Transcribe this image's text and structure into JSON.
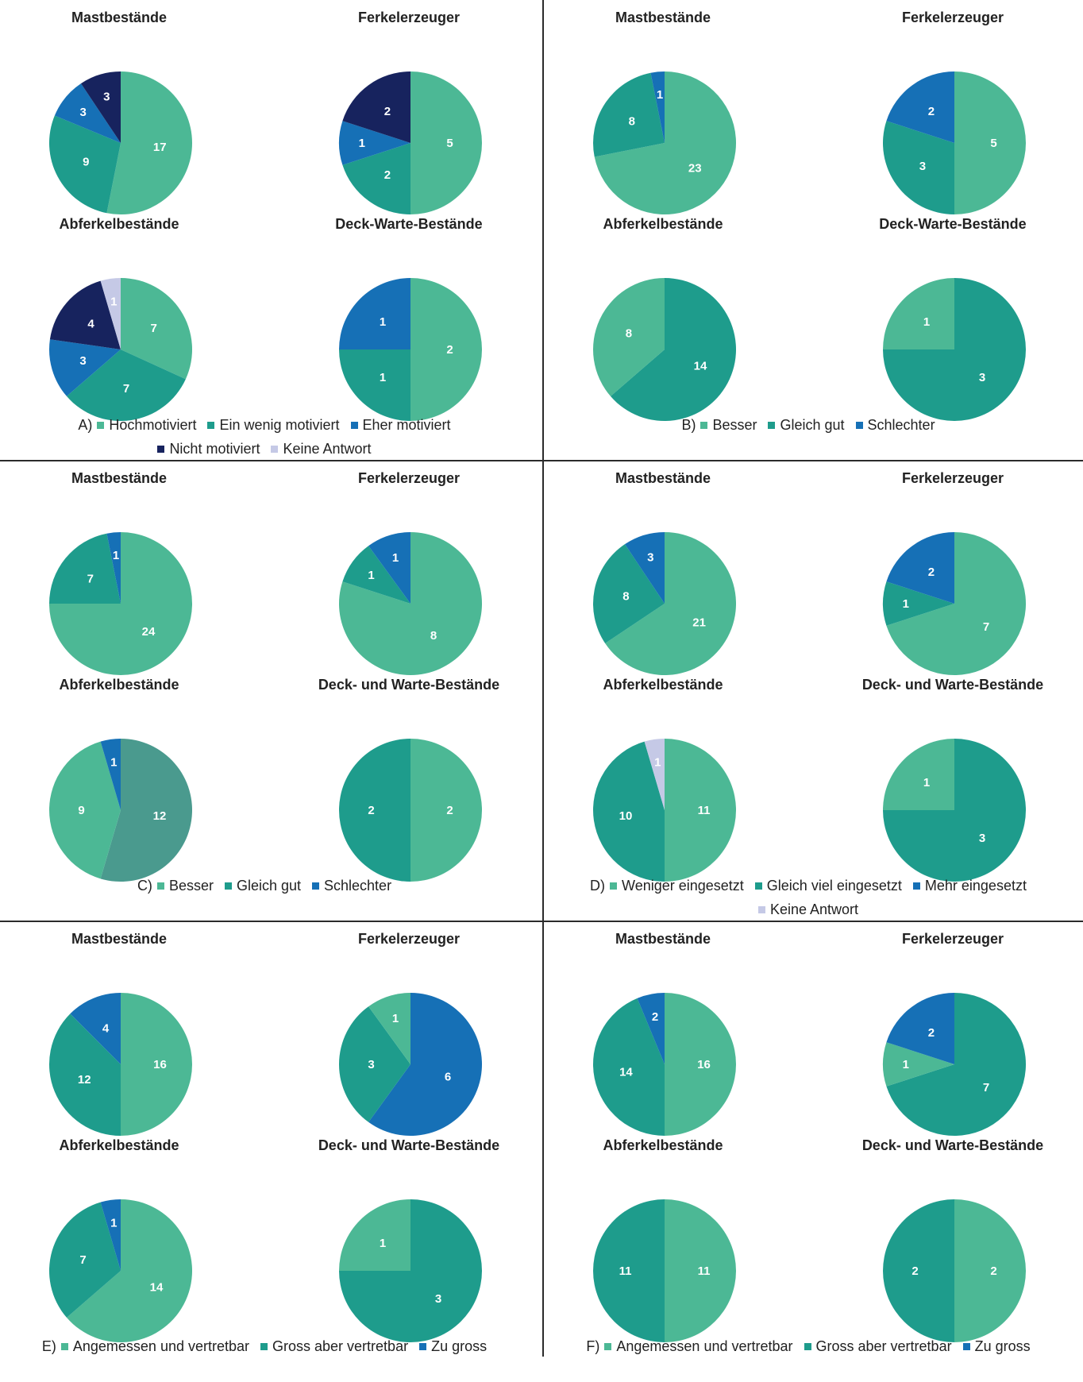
{
  "colors": {
    "hochmotiviert": "#4cb895",
    "ein_wenig": "#1e9c8c",
    "eher": "#1670b6",
    "nicht": "#17235e",
    "keine_antwort": "#c5c9e6",
    "besser": "#4cb895",
    "gleich": "#1e9c8c",
    "schlechter": "#1670b6",
    "gleich_muted": "#4a9a8e"
  },
  "chart_data": [
    {
      "panel": "A",
      "type": "pie",
      "legend": {
        "letter": "A)",
        "lines": [
          [
            {
              "label": "Hochmotiviert",
              "color": "#4cb895"
            },
            {
              "label": "Ein wenig motiviert",
              "color": "#1e9c8c"
            },
            {
              "label": "Eher motiviert",
              "color": "#1670b6"
            }
          ],
          [
            {
              "label": "Nicht motiviert",
              "color": "#17235e"
            },
            {
              "label": "Keine Antwort",
              "color": "#c5c9e6"
            }
          ]
        ]
      },
      "pies": [
        {
          "title": "Mastbestände",
          "slices": [
            {
              "category": "Hochmotiviert",
              "value": 17,
              "color": "#4cb895"
            },
            {
              "category": "Ein wenig motiviert",
              "value": 9,
              "color": "#1e9c8c"
            },
            {
              "category": "Eher motiviert",
              "value": 3,
              "color": "#1670b6"
            },
            {
              "category": "Nicht motiviert",
              "value": 3,
              "color": "#17235e"
            }
          ]
        },
        {
          "title": "Ferkelerzeuger",
          "slices": [
            {
              "category": "Hochmotiviert",
              "value": 5,
              "color": "#4cb895"
            },
            {
              "category": "Ein wenig motiviert",
              "value": 2,
              "color": "#1e9c8c"
            },
            {
              "category": "Eher motiviert",
              "value": 1,
              "color": "#1670b6"
            },
            {
              "category": "Nicht motiviert",
              "value": 2,
              "color": "#17235e"
            }
          ]
        },
        {
          "title": "Abferkelbestände",
          "slices": [
            {
              "category": "Hochmotiviert",
              "value": 7,
              "color": "#4cb895"
            },
            {
              "category": "Ein wenig motiviert",
              "value": 7,
              "color": "#1e9c8c"
            },
            {
              "category": "Eher motiviert",
              "value": 3,
              "color": "#1670b6"
            },
            {
              "category": "Nicht motiviert",
              "value": 4,
              "color": "#17235e"
            },
            {
              "category": "Keine Antwort",
              "value": 1,
              "color": "#c5c9e6"
            }
          ]
        },
        {
          "title": "Deck-Warte-Bestände",
          "slices": [
            {
              "category": "Hochmotiviert",
              "value": 2,
              "color": "#4cb895"
            },
            {
              "category": "Ein wenig motiviert",
              "value": 1,
              "color": "#1e9c8c"
            },
            {
              "category": "Eher motiviert",
              "value": 1,
              "color": "#1670b6"
            }
          ]
        }
      ]
    },
    {
      "panel": "B",
      "type": "pie",
      "legend": {
        "letter": "B)",
        "lines": [
          [
            {
              "label": "Besser",
              "color": "#4cb895"
            },
            {
              "label": "Gleich gut",
              "color": "#1e9c8c"
            },
            {
              "label": "Schlechter",
              "color": "#1670b6"
            }
          ]
        ]
      },
      "pies": [
        {
          "title": "Mastbestände",
          "slices": [
            {
              "category": "Besser",
              "value": 23,
              "color": "#4cb895"
            },
            {
              "category": "Gleich gut",
              "value": 8,
              "color": "#1e9c8c"
            },
            {
              "category": "Schlechter",
              "value": 1,
              "color": "#1670b6"
            }
          ]
        },
        {
          "title": "Ferkelerzeuger",
          "slices": [
            {
              "category": "Besser",
              "value": 5,
              "color": "#4cb895"
            },
            {
              "category": "Gleich gut",
              "value": 3,
              "color": "#1e9c8c"
            },
            {
              "category": "Schlechter",
              "value": 2,
              "color": "#1670b6"
            }
          ]
        },
        {
          "title": "Abferkelbestände",
          "slices": [
            {
              "category": "Gleich gut",
              "value": 14,
              "color": "#1e9c8c"
            },
            {
              "category": "Besser",
              "value": 8,
              "color": "#4cb895"
            }
          ]
        },
        {
          "title": "Deck-Warte-Bestände",
          "slices": [
            {
              "category": "Gleich gut",
              "value": 3,
              "color": "#1e9c8c"
            },
            {
              "category": "Besser",
              "value": 1,
              "color": "#4cb895"
            }
          ]
        }
      ]
    },
    {
      "panel": "C",
      "type": "pie",
      "legend": {
        "letter": "C)",
        "lines": [
          [
            {
              "label": "Besser",
              "color": "#4cb895"
            },
            {
              "label": "Gleich gut",
              "color": "#1e9c8c"
            },
            {
              "label": "Schlechter",
              "color": "#1670b6"
            }
          ]
        ]
      },
      "pies": [
        {
          "title": "Mastbestände",
          "slices": [
            {
              "category": "Besser",
              "value": 24,
              "color": "#4cb895"
            },
            {
              "category": "Gleich gut",
              "value": 7,
              "color": "#1e9c8c"
            },
            {
              "category": "Schlechter",
              "value": 1,
              "color": "#1670b6"
            }
          ]
        },
        {
          "title": "Ferkelerzeuger",
          "slices": [
            {
              "category": "Besser",
              "value": 8,
              "color": "#4cb895"
            },
            {
              "category": "Gleich gut",
              "value": 1,
              "color": "#1e9c8c"
            },
            {
              "category": "Schlechter",
              "value": 1,
              "color": "#1670b6"
            }
          ]
        },
        {
          "title": "Abferkelbestände",
          "slices": [
            {
              "category": "Gleich gut",
              "value": 12,
              "color": "#4a9a8e"
            },
            {
              "category": "Besser",
              "value": 9,
              "color": "#4cb895"
            },
            {
              "category": "Schlechter",
              "value": 1,
              "color": "#1670b6"
            }
          ]
        },
        {
          "title": "Deck- und Warte-Bestände",
          "slices": [
            {
              "category": "Besser",
              "value": 2,
              "color": "#4cb895"
            },
            {
              "category": "Gleich gut",
              "value": 2,
              "color": "#1e9c8c"
            }
          ]
        }
      ]
    },
    {
      "panel": "D",
      "type": "pie",
      "legend": {
        "letter": "D)",
        "lines": [
          [
            {
              "label": "Weniger eingesetzt",
              "color": "#4cb895"
            },
            {
              "label": "Gleich viel eingesetzt",
              "color": "#1e9c8c"
            },
            {
              "label": "Mehr eingesetzt",
              "color": "#1670b6"
            }
          ],
          [
            {
              "label": "Keine Antwort",
              "color": "#c5c9e6"
            }
          ]
        ]
      },
      "pies": [
        {
          "title": "Mastbestände",
          "slices": [
            {
              "category": "Weniger eingesetzt",
              "value": 21,
              "color": "#4cb895"
            },
            {
              "category": "Gleich viel eingesetzt",
              "value": 8,
              "color": "#1e9c8c"
            },
            {
              "category": "Mehr eingesetzt",
              "value": 3,
              "color": "#1670b6"
            }
          ]
        },
        {
          "title": "Ferkelerzeuger",
          "slices": [
            {
              "category": "Weniger eingesetzt",
              "value": 7,
              "color": "#4cb895"
            },
            {
              "category": "Gleich viel eingesetzt",
              "value": 1,
              "color": "#1e9c8c"
            },
            {
              "category": "Mehr eingesetzt",
              "value": 2,
              "color": "#1670b6"
            }
          ]
        },
        {
          "title": "Abferkelbestände",
          "slices": [
            {
              "category": "Weniger eingesetzt",
              "value": 11,
              "color": "#4cb895"
            },
            {
              "category": "Gleich viel eingesetzt",
              "value": 10,
              "color": "#1e9c8c"
            },
            {
              "category": "Keine Antwort",
              "value": 1,
              "color": "#c5c9e6"
            }
          ]
        },
        {
          "title": "Deck- und Warte-Bestände",
          "slices": [
            {
              "category": "Gleich viel eingesetzt",
              "value": 3,
              "color": "#1e9c8c"
            },
            {
              "category": "Weniger eingesetzt",
              "value": 1,
              "color": "#4cb895"
            }
          ]
        }
      ]
    },
    {
      "panel": "E",
      "type": "pie",
      "legend": {
        "letter": "E)",
        "lines": [
          [
            {
              "label": "Angemessen und vertretbar",
              "color": "#4cb895"
            },
            {
              "label": "Gross aber vertretbar",
              "color": "#1e9c8c"
            },
            {
              "label": "Zu gross",
              "color": "#1670b6"
            }
          ]
        ]
      },
      "pies": [
        {
          "title": "Mastbestände",
          "slices": [
            {
              "category": "Angemessen und vertretbar",
              "value": 16,
              "color": "#4cb895"
            },
            {
              "category": "Gross aber vertretbar",
              "value": 12,
              "color": "#1e9c8c"
            },
            {
              "category": "Zu gross",
              "value": 4,
              "color": "#1670b6"
            }
          ]
        },
        {
          "title": "Ferkelerzeuger",
          "slices": [
            {
              "category": "Zu gross",
              "value": 6,
              "color": "#1670b6"
            },
            {
              "category": "Gross aber vertretbar",
              "value": 3,
              "color": "#1e9c8c"
            },
            {
              "category": "Angemessen und vertretbar",
              "value": 1,
              "color": "#4cb895"
            }
          ]
        },
        {
          "title": "Abferkelbestände",
          "slices": [
            {
              "category": "Angemessen und vertretbar",
              "value": 14,
              "color": "#4cb895"
            },
            {
              "category": "Gross aber vertretbar",
              "value": 7,
              "color": "#1e9c8c"
            },
            {
              "category": "Zu gross",
              "value": 1,
              "color": "#1670b6"
            }
          ]
        },
        {
          "title": "Deck- und Warte-Bestände",
          "slices": [
            {
              "category": "Gross aber vertretbar",
              "value": 3,
              "color": "#1e9c8c"
            },
            {
              "category": "Angemessen und vertretbar",
              "value": 1,
              "color": "#4cb895"
            }
          ]
        }
      ]
    },
    {
      "panel": "F",
      "type": "pie",
      "legend": {
        "letter": "F)",
        "lines": [
          [
            {
              "label": "Angemessen und vertretbar",
              "color": "#4cb895"
            },
            {
              "label": "Gross aber vertretbar",
              "color": "#1e9c8c"
            },
            {
              "label": "Zu gross",
              "color": "#1670b6"
            }
          ]
        ]
      },
      "pies": [
        {
          "title": "Mastbestände",
          "slices": [
            {
              "category": "Angemessen und vertretbar",
              "value": 16,
              "color": "#4cb895"
            },
            {
              "category": "Gross aber vertretbar",
              "value": 14,
              "color": "#1e9c8c"
            },
            {
              "category": "Zu gross",
              "value": 2,
              "color": "#1670b6"
            }
          ]
        },
        {
          "title": "Ferkelerzeuger",
          "slices": [
            {
              "category": "Gross aber vertretbar",
              "value": 7,
              "color": "#1e9c8c"
            },
            {
              "category": "Angemessen und vertretbar",
              "value": 1,
              "color": "#4cb895"
            },
            {
              "category": "Zu gross",
              "value": 2,
              "color": "#1670b6"
            }
          ]
        },
        {
          "title": "Abferkelbestände",
          "slices": [
            {
              "category": "Angemessen und vertretbar",
              "value": 11,
              "color": "#4cb895"
            },
            {
              "category": "Gross aber vertretbar",
              "value": 11,
              "color": "#1e9c8c"
            }
          ]
        },
        {
          "title": "Deck- und Warte-Bestände",
          "slices": [
            {
              "category": "Angemessen und vertretbar",
              "value": 2,
              "color": "#4cb895"
            },
            {
              "category": "Gross aber vertretbar",
              "value": 2,
              "color": "#1e9c8c"
            }
          ]
        }
      ]
    }
  ]
}
